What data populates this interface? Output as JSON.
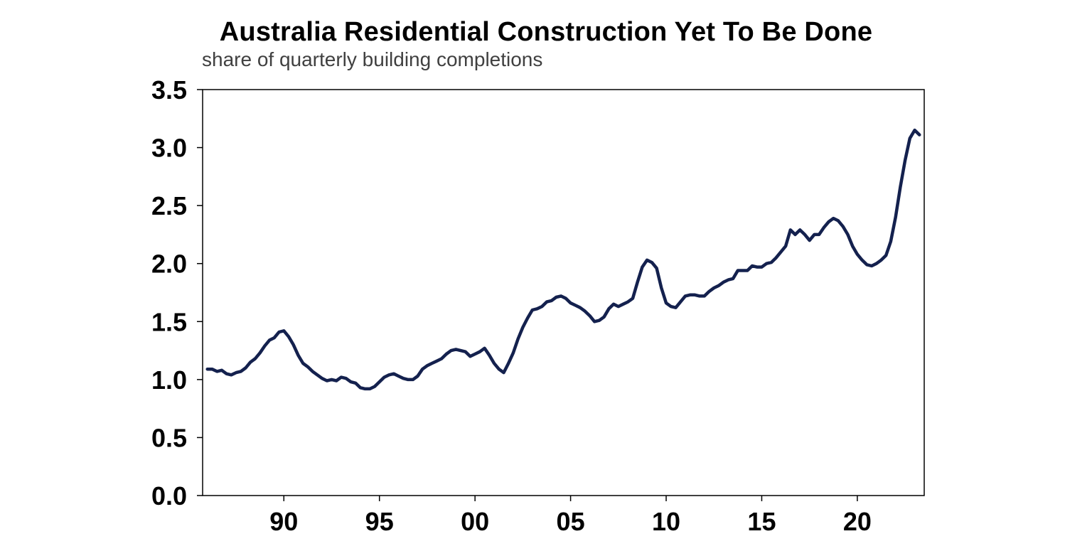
{
  "chart_data": {
    "type": "line",
    "title": "Australia Residential Construction Yet To Be Done",
    "subtitle": "share of quarterly building completions",
    "xlabel": "",
    "ylabel": "",
    "ylim": [
      0,
      3.5
    ],
    "xlim": [
      1985.75,
      2023.5
    ],
    "y_ticks": [
      {
        "value": 0.0,
        "label": "0.0"
      },
      {
        "value": 0.5,
        "label": "0.5"
      },
      {
        "value": 1.0,
        "label": "1.0"
      },
      {
        "value": 1.5,
        "label": "1.5"
      },
      {
        "value": 2.0,
        "label": "2.0"
      },
      {
        "value": 2.5,
        "label": "2.5"
      },
      {
        "value": 3.0,
        "label": "3.0"
      },
      {
        "value": 3.5,
        "label": "3.5"
      }
    ],
    "x_ticks": [
      {
        "value": 1990,
        "label": "90"
      },
      {
        "value": 1995,
        "label": "95"
      },
      {
        "value": 2000,
        "label": "00"
      },
      {
        "value": 2005,
        "label": "05"
      },
      {
        "value": 2010,
        "label": "10"
      },
      {
        "value": 2015,
        "label": "15"
      },
      {
        "value": 2020,
        "label": "20"
      }
    ],
    "grid": false,
    "legend": "none",
    "line_color": "#14214e",
    "series": [
      {
        "values": [
          [
            1986.0,
            1.09
          ],
          [
            1986.25,
            1.09
          ],
          [
            1986.5,
            1.07
          ],
          [
            1986.75,
            1.08
          ],
          [
            1987.0,
            1.05
          ],
          [
            1987.25,
            1.04
          ],
          [
            1987.5,
            1.06
          ],
          [
            1987.75,
            1.07
          ],
          [
            1988.0,
            1.1
          ],
          [
            1988.25,
            1.15
          ],
          [
            1988.5,
            1.18
          ],
          [
            1988.75,
            1.23
          ],
          [
            1989.0,
            1.29
          ],
          [
            1989.25,
            1.34
          ],
          [
            1989.5,
            1.36
          ],
          [
            1989.75,
            1.41
          ],
          [
            1990.0,
            1.42
          ],
          [
            1990.25,
            1.37
          ],
          [
            1990.5,
            1.3
          ],
          [
            1990.75,
            1.21
          ],
          [
            1991.0,
            1.14
          ],
          [
            1991.25,
            1.11
          ],
          [
            1991.5,
            1.07
          ],
          [
            1991.75,
            1.04
          ],
          [
            1992.0,
            1.01
          ],
          [
            1992.25,
            0.99
          ],
          [
            1992.5,
            1.0
          ],
          [
            1992.75,
            0.99
          ],
          [
            1993.0,
            1.02
          ],
          [
            1993.25,
            1.01
          ],
          [
            1993.5,
            0.98
          ],
          [
            1993.75,
            0.97
          ],
          [
            1994.0,
            0.93
          ],
          [
            1994.25,
            0.92
          ],
          [
            1994.5,
            0.92
          ],
          [
            1994.75,
            0.94
          ],
          [
            1995.0,
            0.98
          ],
          [
            1995.25,
            1.02
          ],
          [
            1995.5,
            1.04
          ],
          [
            1995.75,
            1.05
          ],
          [
            1996.0,
            1.03
          ],
          [
            1996.25,
            1.01
          ],
          [
            1996.5,
            1.0
          ],
          [
            1996.75,
            1.0
          ],
          [
            1997.0,
            1.03
          ],
          [
            1997.25,
            1.09
          ],
          [
            1997.5,
            1.12
          ],
          [
            1997.75,
            1.14
          ],
          [
            1998.0,
            1.16
          ],
          [
            1998.25,
            1.18
          ],
          [
            1998.5,
            1.22
          ],
          [
            1998.75,
            1.25
          ],
          [
            1999.0,
            1.26
          ],
          [
            1999.25,
            1.25
          ],
          [
            1999.5,
            1.24
          ],
          [
            1999.75,
            1.2
          ],
          [
            2000.0,
            1.22
          ],
          [
            2000.25,
            1.24
          ],
          [
            2000.5,
            1.27
          ],
          [
            2000.75,
            1.21
          ],
          [
            2001.0,
            1.14
          ],
          [
            2001.25,
            1.09
          ],
          [
            2001.5,
            1.06
          ],
          [
            2001.75,
            1.14
          ],
          [
            2002.0,
            1.23
          ],
          [
            2002.25,
            1.35
          ],
          [
            2002.5,
            1.45
          ],
          [
            2002.75,
            1.53
          ],
          [
            2003.0,
            1.6
          ],
          [
            2003.25,
            1.61
          ],
          [
            2003.5,
            1.63
          ],
          [
            2003.75,
            1.67
          ],
          [
            2004.0,
            1.68
          ],
          [
            2004.25,
            1.71
          ],
          [
            2004.5,
            1.72
          ],
          [
            2004.75,
            1.7
          ],
          [
            2005.0,
            1.66
          ],
          [
            2005.25,
            1.64
          ],
          [
            2005.5,
            1.62
          ],
          [
            2005.75,
            1.59
          ],
          [
            2006.0,
            1.55
          ],
          [
            2006.25,
            1.5
          ],
          [
            2006.5,
            1.51
          ],
          [
            2006.75,
            1.54
          ],
          [
            2007.0,
            1.61
          ],
          [
            2007.25,
            1.65
          ],
          [
            2007.5,
            1.63
          ],
          [
            2007.75,
            1.65
          ],
          [
            2008.0,
            1.67
          ],
          [
            2008.25,
            1.7
          ],
          [
            2008.5,
            1.84
          ],
          [
            2008.75,
            1.97
          ],
          [
            2009.0,
            2.03
          ],
          [
            2009.25,
            2.01
          ],
          [
            2009.5,
            1.96
          ],
          [
            2009.75,
            1.79
          ],
          [
            2010.0,
            1.66
          ],
          [
            2010.25,
            1.63
          ],
          [
            2010.5,
            1.62
          ],
          [
            2010.75,
            1.67
          ],
          [
            2011.0,
            1.72
          ],
          [
            2011.25,
            1.73
          ],
          [
            2011.5,
            1.73
          ],
          [
            2011.75,
            1.72
          ],
          [
            2012.0,
            1.72
          ],
          [
            2012.25,
            1.76
          ],
          [
            2012.5,
            1.79
          ],
          [
            2012.75,
            1.81
          ],
          [
            2013.0,
            1.84
          ],
          [
            2013.25,
            1.86
          ],
          [
            2013.5,
            1.87
          ],
          [
            2013.75,
            1.94
          ],
          [
            2014.0,
            1.94
          ],
          [
            2014.25,
            1.94
          ],
          [
            2014.5,
            1.98
          ],
          [
            2014.75,
            1.97
          ],
          [
            2015.0,
            1.97
          ],
          [
            2015.25,
            2.0
          ],
          [
            2015.5,
            2.01
          ],
          [
            2015.75,
            2.05
          ],
          [
            2016.0,
            2.1
          ],
          [
            2016.25,
            2.15
          ],
          [
            2016.5,
            2.29
          ],
          [
            2016.75,
            2.25
          ],
          [
            2017.0,
            2.29
          ],
          [
            2017.25,
            2.25
          ],
          [
            2017.5,
            2.2
          ],
          [
            2017.75,
            2.25
          ],
          [
            2018.0,
            2.25
          ],
          [
            2018.25,
            2.31
          ],
          [
            2018.5,
            2.36
          ],
          [
            2018.75,
            2.39
          ],
          [
            2019.0,
            2.37
          ],
          [
            2019.25,
            2.32
          ],
          [
            2019.5,
            2.25
          ],
          [
            2019.75,
            2.15
          ],
          [
            2020.0,
            2.08
          ],
          [
            2020.25,
            2.03
          ],
          [
            2020.5,
            1.99
          ],
          [
            2020.75,
            1.98
          ],
          [
            2021.0,
            2.0
          ],
          [
            2021.25,
            2.03
          ],
          [
            2021.5,
            2.07
          ],
          [
            2021.75,
            2.19
          ],
          [
            2022.0,
            2.4
          ],
          [
            2022.25,
            2.66
          ],
          [
            2022.5,
            2.89
          ],
          [
            2022.75,
            3.08
          ],
          [
            2023.0,
            3.15
          ],
          [
            2023.25,
            3.11
          ]
        ]
      }
    ]
  }
}
